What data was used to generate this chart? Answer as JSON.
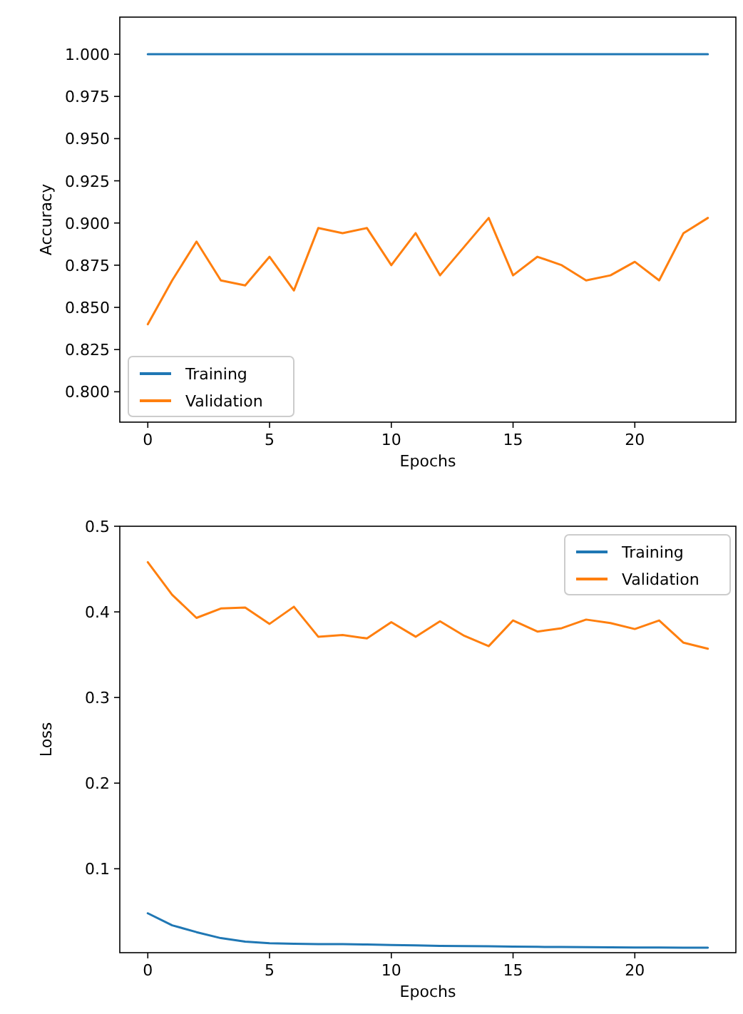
{
  "chart_data": [
    {
      "type": "line",
      "xlabel": "Epochs",
      "ylabel": "Accuracy",
      "x": [
        0,
        1,
        2,
        3,
        4,
        5,
        6,
        7,
        8,
        9,
        10,
        11,
        12,
        13,
        14,
        15,
        16,
        17,
        18,
        19,
        20,
        21,
        22,
        23
      ],
      "xlim": [
        -1.15,
        24.15
      ],
      "xticks": [
        0,
        5,
        10,
        15,
        20
      ],
      "ylim": [
        0.782,
        1.022
      ],
      "yticks": [
        {
          "value": 0.8,
          "label": "0.800"
        },
        {
          "value": 0.825,
          "label": "0.825"
        },
        {
          "value": 0.85,
          "label": "0.850"
        },
        {
          "value": 0.875,
          "label": "0.875"
        },
        {
          "value": 0.9,
          "label": "0.900"
        },
        {
          "value": 0.925,
          "label": "0.925"
        },
        {
          "value": 0.95,
          "label": "0.950"
        },
        {
          "value": 0.975,
          "label": "0.975"
        },
        {
          "value": 1.0,
          "label": "1.000"
        }
      ],
      "legend": "bottom left",
      "grid": false,
      "series": [
        {
          "name": "Training",
          "color": "#1f77b4",
          "values": [
            1,
            1,
            1,
            1,
            1,
            1,
            1,
            1,
            1,
            1,
            1,
            1,
            1,
            1,
            1,
            1,
            1,
            1,
            1,
            1,
            1,
            1,
            1,
            1
          ]
        },
        {
          "name": "Validation",
          "color": "#ff7f0e",
          "values": [
            0.84,
            0.866,
            0.889,
            0.866,
            0.863,
            0.88,
            0.86,
            0.897,
            0.894,
            0.897,
            0.875,
            0.894,
            0.869,
            0.886,
            0.903,
            0.869,
            0.88,
            0.875,
            0.866,
            0.869,
            0.877,
            0.866,
            0.894,
            0.903
          ]
        }
      ]
    },
    {
      "type": "line",
      "xlabel": "Epochs",
      "ylabel": "Loss",
      "x": [
        0,
        1,
        2,
        3,
        4,
        5,
        6,
        7,
        8,
        9,
        10,
        11,
        12,
        13,
        14,
        15,
        16,
        17,
        18,
        19,
        20,
        21,
        22,
        23
      ],
      "xlim": [
        -1.15,
        24.15
      ],
      "xticks": [
        0,
        5,
        10,
        15,
        20
      ],
      "ylim": [
        0.002,
        0.5
      ],
      "yticks": [
        0.1,
        0.2,
        0.3,
        0.4,
        0.5
      ],
      "legend": "top right",
      "grid": false,
      "series": [
        {
          "name": "Training",
          "color": "#1f77b4",
          "values": [
            0.048,
            0.034,
            0.026,
            0.019,
            0.015,
            0.013,
            0.0125,
            0.012,
            0.012,
            0.0115,
            0.011,
            0.0105,
            0.01,
            0.0098,
            0.0095,
            0.009,
            0.0088,
            0.0086,
            0.0084,
            0.0082,
            0.0081,
            0.008,
            0.0079,
            0.0078
          ]
        },
        {
          "name": "Validation",
          "color": "#ff7f0e",
          "values": [
            0.458,
            0.42,
            0.393,
            0.404,
            0.405,
            0.386,
            0.406,
            0.371,
            0.373,
            0.369,
            0.388,
            0.371,
            0.389,
            0.372,
            0.36,
            0.39,
            0.377,
            0.381,
            0.391,
            0.387,
            0.38,
            0.39,
            0.364,
            0.357
          ]
        }
      ]
    }
  ]
}
